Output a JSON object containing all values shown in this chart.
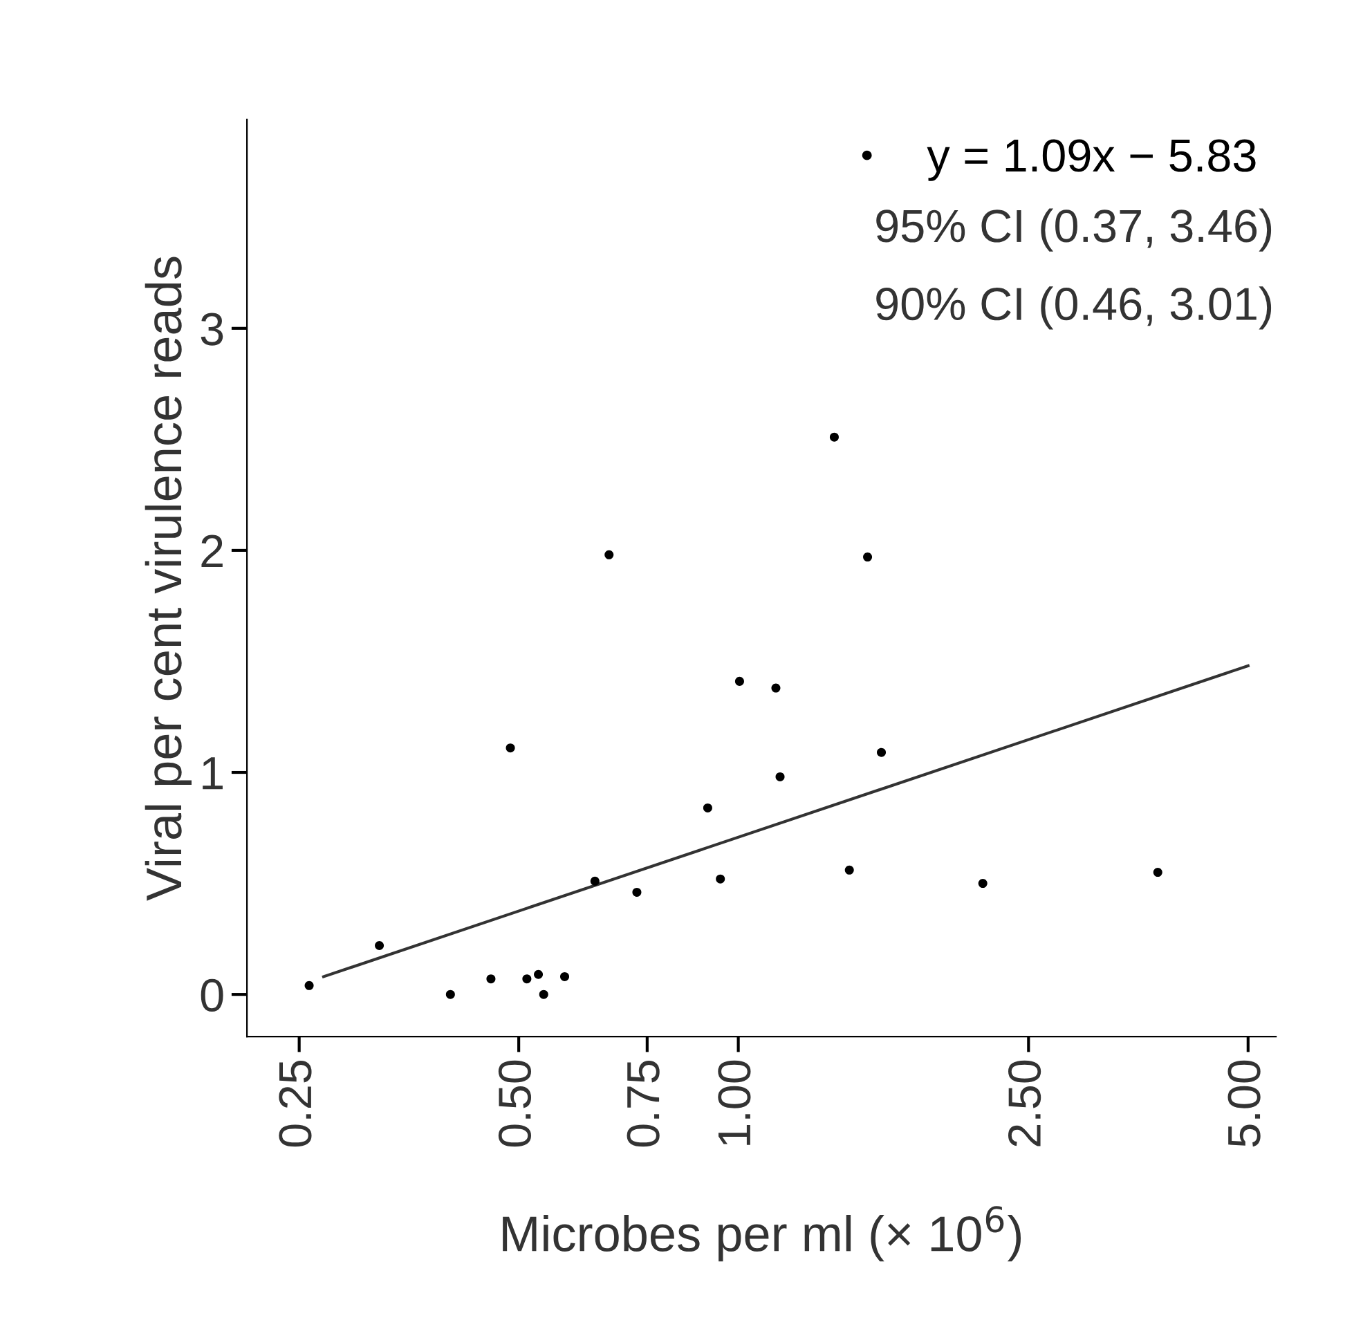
{
  "chart_data": {
    "type": "scatter",
    "xlabel": "Microbes per ml (× 10$^{6}$)",
    "ylabel": "Viral per cent virulence reads",
    "log": "x",
    "xlim": [
      0.212,
      5.46
    ],
    "ylim": [
      -0.19,
      3.94
    ],
    "xticks": [
      {
        "value": 0.25,
        "label": "0.25"
      },
      {
        "value": 0.5,
        "label": "0.50"
      },
      {
        "value": 0.75,
        "label": "0.75"
      },
      {
        "value": 1.0,
        "label": "1.00"
      },
      {
        "value": 2.5,
        "label": "2.50"
      },
      {
        "value": 5.0,
        "label": "5.00"
      }
    ],
    "yticks": [
      0,
      1,
      2,
      3
    ],
    "grid": false,
    "legend": "top right",
    "series": [
      {
        "name": "y = 1.09x − 5.83",
        "marker": "circle",
        "color": "#000000",
        "x": [
          0.258,
          0.322,
          0.403,
          0.458,
          0.487,
          0.513,
          0.532,
          0.541,
          0.578,
          0.636,
          0.665,
          0.726,
          0.908,
          0.945,
          1.004,
          1.126,
          1.141,
          1.354,
          1.42,
          1.504,
          1.571,
          2.164,
          3.76
        ],
        "values": [
          0.04,
          0.22,
          0.0,
          0.07,
          1.11,
          0.07,
          0.09,
          0.0,
          0.08,
          0.51,
          1.98,
          0.46,
          0.84,
          0.52,
          1.41,
          1.38,
          0.98,
          2.51,
          0.56,
          1.97,
          1.09,
          0.5,
          0.55
        ]
      },
      {
        "type": "line",
        "color": "#333333",
        "x": [
          0.27,
          5.0
        ],
        "values": [
          0.08,
          1.48
        ],
        "line_style": "solid"
      }
    ],
    "annotations": [
      "95% CI (0.37, 3.46)",
      "90% CI (0.46, 3.01)"
    ]
  }
}
